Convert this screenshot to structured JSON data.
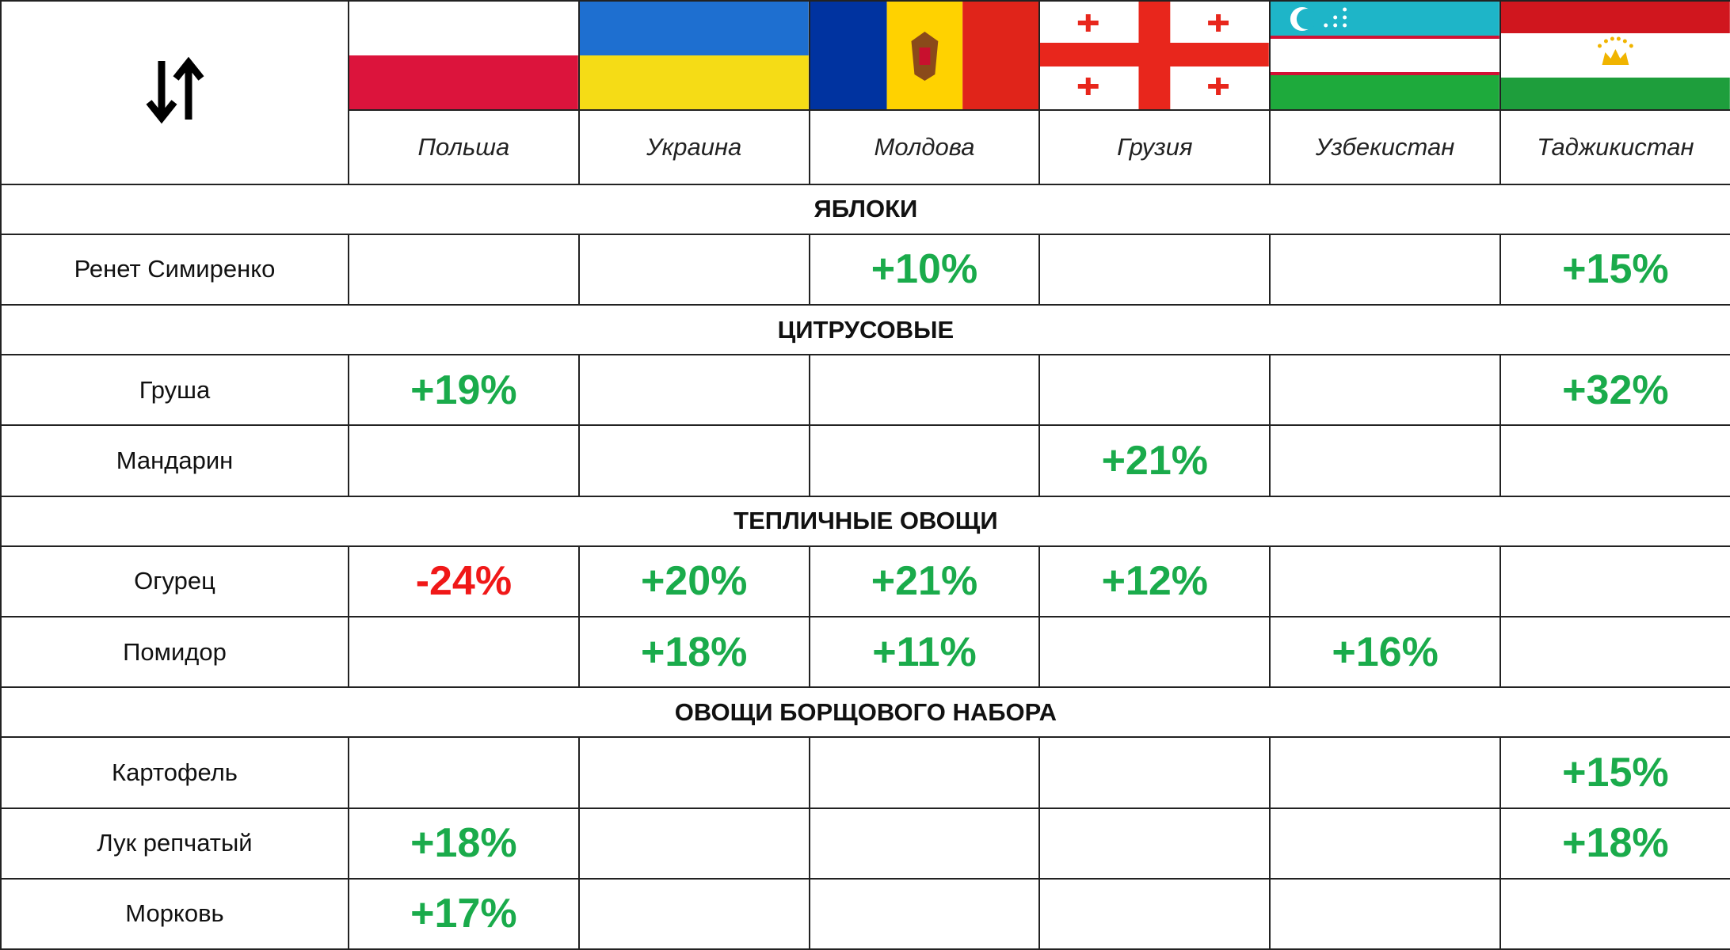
{
  "header": {
    "countries": [
      "Польша",
      "Украина",
      "Молдова",
      "Грузия",
      "Узбекистан",
      "Таджикистан"
    ]
  },
  "sections": [
    {
      "title": "ЯБЛОКИ",
      "rows": [
        {
          "label": "Ренет Симиренко",
          "cells": [
            null,
            null,
            "+10%",
            null,
            null,
            "+15%"
          ]
        }
      ]
    },
    {
      "title": "ЦИТРУСОВЫЕ",
      "rows": [
        {
          "label": "Груша",
          "cells": [
            "+19%",
            null,
            null,
            null,
            null,
            "+32%"
          ]
        },
        {
          "label": "Мандарин",
          "cells": [
            null,
            null,
            null,
            "+21%",
            null,
            null
          ]
        }
      ]
    },
    {
      "title": "ТЕПЛИЧНЫЕ ОВОЩИ",
      "rows": [
        {
          "label": "Огурец",
          "cells": [
            "-24%",
            "+20%",
            "+21%",
            "+12%",
            null,
            null
          ]
        },
        {
          "label": "Помидор",
          "cells": [
            null,
            "+18%",
            "+11%",
            null,
            "+16%",
            null
          ]
        }
      ]
    },
    {
      "title": "ОВОЩИ БОРЩОВОГО НАБОРА",
      "rows": [
        {
          "label": "Картофель",
          "cells": [
            null,
            null,
            null,
            null,
            null,
            "+15%"
          ]
        },
        {
          "label": "Лук репчатый",
          "cells": [
            "+18%",
            null,
            null,
            null,
            null,
            "+18%"
          ]
        },
        {
          "label": "Морковь",
          "cells": [
            "+17%",
            null,
            null,
            null,
            null,
            null
          ]
        }
      ]
    }
  ]
}
